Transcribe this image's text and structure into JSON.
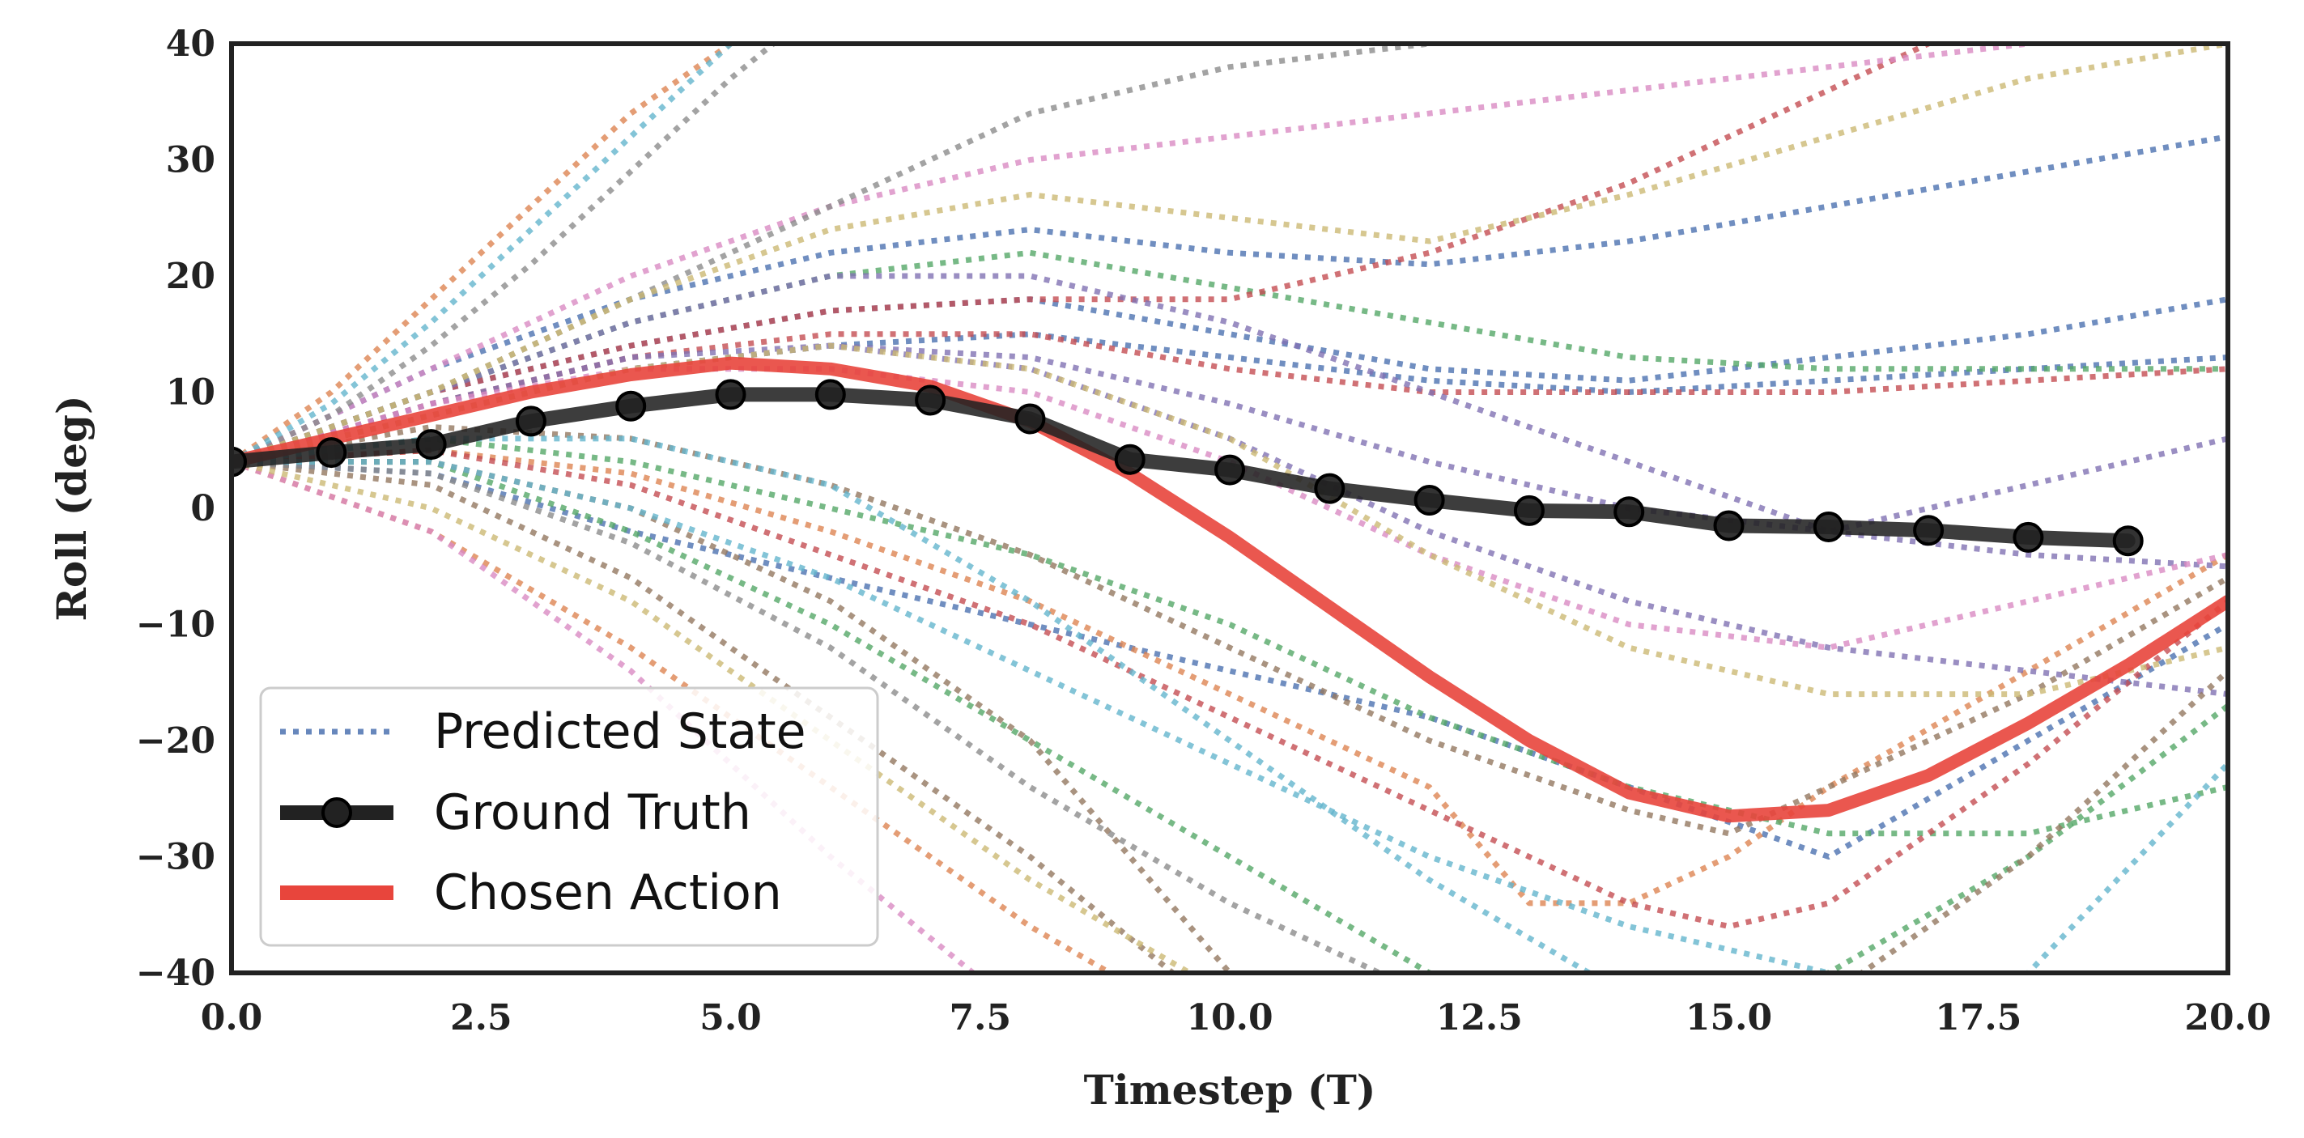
{
  "chart_data": {
    "type": "line",
    "title": "",
    "xlabel": "Timestep (T)",
    "ylabel": "Roll (deg)",
    "xlim": [
      0,
      20
    ],
    "ylim": [
      -40,
      40
    ],
    "grid": false,
    "legend_position": "lower-left",
    "xticks": [
      "0.0",
      "2.5",
      "5.0",
      "7.5",
      "10.0",
      "12.5",
      "15.0",
      "17.5",
      "20.0"
    ],
    "xtick_values": [
      0,
      2.5,
      5,
      7.5,
      10,
      12.5,
      15,
      17.5,
      20
    ],
    "yticks": [
      "−40",
      "−30",
      "−20",
      "−10",
      "0",
      "10",
      "20",
      "30",
      "40"
    ],
    "ytick_values": [
      -40,
      -30,
      -20,
      -10,
      0,
      10,
      20,
      30,
      40
    ],
    "legend": [
      {
        "label": "Predicted State",
        "style": "dotted",
        "color": "#4c72b0"
      },
      {
        "label": "Ground Truth",
        "style": "solid-marker",
        "color": "#222222"
      },
      {
        "label": "Chosen Action",
        "style": "solid",
        "color": "#e8453c"
      }
    ],
    "series": [
      {
        "name": "Ground Truth",
        "color": "#222222",
        "x": [
          0,
          1,
          2,
          3,
          4,
          5,
          6,
          7,
          8,
          9,
          10,
          11,
          12,
          13,
          14,
          15,
          16,
          17,
          18,
          19
        ],
        "y": [
          4,
          4.8,
          5.5,
          7.5,
          8.8,
          9.8,
          9.8,
          9.3,
          7.7,
          4.2,
          3.3,
          1.7,
          0.7,
          -0.2,
          -0.3,
          -1.5,
          -1.6,
          -1.9,
          -2.5,
          -2.8
        ]
      },
      {
        "name": "Chosen Action",
        "color": "#e8453c",
        "x": [
          0,
          1,
          2,
          3,
          4,
          5,
          6,
          7,
          8,
          9,
          10,
          11,
          12,
          13,
          14,
          15,
          16,
          17,
          18,
          19,
          20
        ],
        "y": [
          4,
          6,
          8,
          10,
          11.5,
          12.5,
          12,
          10.5,
          7.5,
          3,
          -2.5,
          -8.5,
          -14.5,
          -20,
          -24.5,
          -26.5,
          -26,
          -23,
          -18.5,
          -13.5,
          -8
        ]
      }
    ],
    "predicted_states": [
      {
        "color": "#4c72b0",
        "x": [
          0,
          2,
          4,
          6,
          8,
          10,
          12,
          14,
          16,
          18,
          20
        ],
        "y": [
          4,
          12,
          18,
          22,
          24,
          22,
          21,
          23,
          26,
          29,
          32
        ]
      },
      {
        "color": "#4c72b0",
        "x": [
          0,
          2,
          4,
          6,
          8,
          10,
          12,
          14,
          16,
          18,
          20
        ],
        "y": [
          4,
          10,
          14,
          17,
          18,
          15,
          12,
          11,
          13,
          15,
          18
        ]
      },
      {
        "color": "#4c72b0",
        "x": [
          0,
          2,
          4,
          6,
          8,
          10,
          12,
          14,
          16,
          18,
          20
        ],
        "y": [
          4,
          8,
          12,
          14,
          15,
          13,
          11,
          10,
          11,
          12,
          13
        ]
      },
      {
        "color": "#4c72b0",
        "x": [
          0,
          2,
          4,
          6,
          8,
          10,
          12,
          14,
          16,
          18,
          20
        ],
        "y": [
          4,
          3,
          -2,
          -6,
          -10,
          -14,
          -18,
          -24,
          -30,
          -20,
          -10
        ]
      },
      {
        "color": "#dd8452",
        "x": [
          0,
          1,
          2,
          3,
          4,
          5,
          6
        ],
        "y": [
          4,
          10,
          18,
          26,
          34,
          40,
          45
        ]
      },
      {
        "color": "#dd8452",
        "x": [
          0,
          2,
          4,
          6,
          8,
          10,
          12,
          13,
          14,
          15,
          16,
          18,
          20
        ],
        "y": [
          4,
          5,
          3,
          -2,
          -8,
          -16,
          -24,
          -34,
          -34,
          -30,
          -24,
          -14,
          -4
        ]
      },
      {
        "color": "#dd8452",
        "x": [
          0,
          2,
          4,
          6,
          8,
          10
        ],
        "y": [
          4,
          -2,
          -12,
          -24,
          -36,
          -46
        ]
      },
      {
        "color": "#55a868",
        "x": [
          0,
          2,
          4,
          6,
          8,
          10,
          12,
          14,
          16,
          18,
          20
        ],
        "y": [
          4,
          10,
          16,
          20,
          22,
          19,
          16,
          13,
          12,
          12,
          12
        ]
      },
      {
        "color": "#55a868",
        "x": [
          0,
          2,
          4,
          6,
          8,
          10,
          12,
          14,
          16,
          18,
          20
        ],
        "y": [
          4,
          6,
          4,
          0,
          -4,
          -10,
          -18,
          -24,
          -28,
          -28,
          -24
        ]
      },
      {
        "color": "#55a868",
        "x": [
          0,
          2,
          4,
          6,
          8,
          10,
          12,
          14,
          16,
          18,
          20
        ],
        "y": [
          4,
          4,
          -2,
          -10,
          -20,
          -30,
          -40,
          -45,
          -40,
          -30,
          -17
        ]
      },
      {
        "color": "#c44e52",
        "x": [
          0,
          2,
          4,
          6,
          8,
          10,
          12,
          14,
          16,
          18
        ],
        "y": [
          4,
          10,
          14,
          17,
          18,
          18,
          22,
          28,
          36,
          44
        ]
      },
      {
        "color": "#c44e52",
        "x": [
          0,
          2,
          4,
          6,
          8,
          10,
          12,
          14,
          16,
          18,
          20
        ],
        "y": [
          4,
          9,
          13,
          15,
          15,
          12,
          10,
          10,
          10,
          11,
          12
        ]
      },
      {
        "color": "#c44e52",
        "x": [
          0,
          2,
          4,
          6,
          8,
          10,
          12,
          14,
          15,
          16,
          18,
          20
        ],
        "y": [
          4,
          5,
          2,
          -4,
          -10,
          -18,
          -26,
          -34,
          -36,
          -34,
          -22,
          -8
        ]
      },
      {
        "color": "#8172b3",
        "x": [
          0,
          2,
          4,
          6,
          8,
          10,
          12,
          14,
          16,
          18,
          20
        ],
        "y": [
          4,
          10,
          16,
          20,
          20,
          16,
          10,
          4,
          -2,
          -4,
          -5
        ]
      },
      {
        "color": "#8172b3",
        "x": [
          0,
          2,
          4,
          6,
          8,
          10,
          12,
          14,
          16,
          18,
          20
        ],
        "y": [
          4,
          8,
          12,
          14,
          13,
          9,
          4,
          0,
          -2,
          2,
          6
        ]
      },
      {
        "color": "#8172b3",
        "x": [
          0,
          2,
          4,
          6,
          8,
          10,
          12,
          14,
          16,
          18,
          20
        ],
        "y": [
          4,
          9,
          13,
          14,
          12,
          6,
          -2,
          -8,
          -12,
          -14,
          -16
        ]
      },
      {
        "color": "#937860",
        "x": [
          0,
          2,
          4,
          6,
          8,
          10
        ],
        "y": [
          4,
          4,
          0,
          -8,
          -20,
          -40
        ]
      },
      {
        "color": "#937860",
        "x": [
          0,
          2,
          4,
          6,
          8,
          10,
          12,
          14,
          15,
          16,
          18,
          20
        ],
        "y": [
          4,
          7,
          6,
          2,
          -4,
          -12,
          -20,
          -26,
          -28,
          -24,
          -16,
          -6
        ]
      },
      {
        "color": "#937860",
        "x": [
          0,
          2,
          4,
          6,
          8,
          10,
          12,
          14,
          16,
          18,
          20
        ],
        "y": [
          4,
          2,
          -6,
          -18,
          -30,
          -44,
          -50,
          -48,
          -42,
          -30,
          -14
        ]
      },
      {
        "color": "#da8bc3",
        "x": [
          0,
          2,
          4,
          6,
          8,
          10,
          12,
          14,
          16,
          18,
          20
        ],
        "y": [
          4,
          12,
          20,
          26,
          30,
          32,
          34,
          36,
          38,
          40,
          42
        ]
      },
      {
        "color": "#da8bc3",
        "x": [
          0,
          2,
          4,
          6,
          8,
          10,
          12,
          14,
          16,
          18,
          20
        ],
        "y": [
          4,
          9,
          12,
          12,
          10,
          4,
          -4,
          -10,
          -12,
          -8,
          -4
        ]
      },
      {
        "color": "#da8bc3",
        "x": [
          0,
          2,
          4,
          6,
          8
        ],
        "y": [
          4,
          -2,
          -14,
          -30,
          -44
        ]
      },
      {
        "color": "#8c8c8c",
        "x": [
          0,
          1,
          2,
          3,
          4,
          5,
          6
        ],
        "y": [
          4,
          8,
          14,
          21,
          29,
          37,
          44
        ]
      },
      {
        "color": "#8c8c8c",
        "x": [
          0,
          2,
          4,
          6,
          8,
          10,
          12
        ],
        "y": [
          4,
          3,
          -3,
          -12,
          -24,
          -34,
          -42
        ]
      },
      {
        "color": "#8c8c8c",
        "x": [
          0,
          2,
          4,
          6,
          8,
          10,
          12,
          14,
          16,
          18,
          20
        ],
        "y": [
          4,
          10,
          18,
          26,
          34,
          38,
          40,
          42,
          44,
          46,
          48
        ]
      },
      {
        "color": "#ccb974",
        "x": [
          0,
          2,
          4,
          6,
          8,
          10,
          12,
          14,
          16,
          18,
          20
        ],
        "y": [
          4,
          10,
          18,
          24,
          27,
          25,
          23,
          27,
          32,
          37,
          40
        ]
      },
      {
        "color": "#ccb974",
        "x": [
          0,
          2,
          4,
          6,
          8,
          10,
          12,
          14,
          16,
          18,
          20
        ],
        "y": [
          4,
          8,
          12,
          14,
          12,
          6,
          -4,
          -12,
          -16,
          -16,
          -12
        ]
      },
      {
        "color": "#ccb974",
        "x": [
          0,
          2,
          4,
          6,
          8,
          10,
          12
        ],
        "y": [
          4,
          0,
          -8,
          -20,
          -32,
          -42,
          -48
        ]
      },
      {
        "color": "#64b5cd",
        "x": [
          0,
          1,
          2,
          3,
          4,
          5,
          6
        ],
        "y": [
          4,
          9,
          16,
          24,
          32,
          40,
          46
        ]
      },
      {
        "color": "#64b5cd",
        "x": [
          0,
          2,
          4,
          6,
          8,
          10,
          12,
          14,
          16,
          18,
          20
        ],
        "y": [
          4,
          6,
          6,
          2,
          -8,
          -20,
          -32,
          -42,
          -48,
          -40,
          -22
        ]
      },
      {
        "color": "#64b5cd",
        "x": [
          0,
          2,
          4,
          6,
          8,
          10,
          12,
          14,
          16,
          18,
          20
        ],
        "y": [
          4,
          4,
          0,
          -6,
          -14,
          -22,
          -30,
          -36,
          -40,
          -44,
          -46
        ]
      }
    ]
  }
}
